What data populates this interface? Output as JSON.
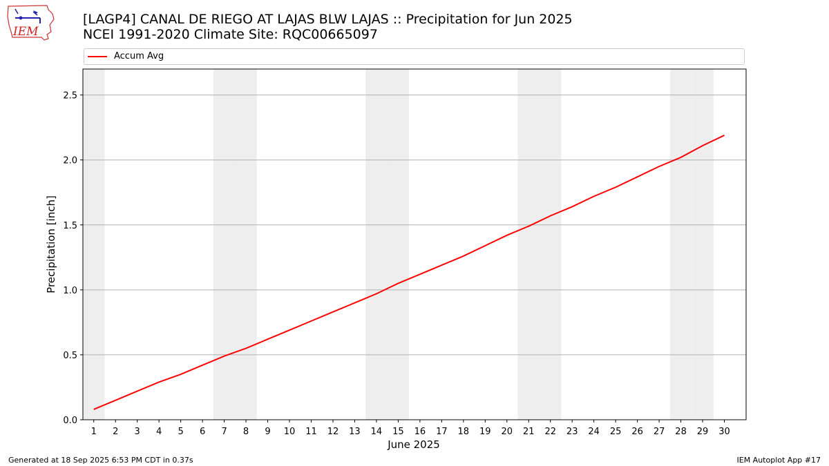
{
  "header": {
    "title_line1": "[LAGP4] CANAL DE RIEGO AT LAJAS BLW LAJAS :: Precipitation for Jun 2025",
    "title_line2": "NCEI 1991-2020 Climate Site: RQC00665097"
  },
  "logo": {
    "text": "IEM",
    "icon": "iem-iowa-logo"
  },
  "chart_data": {
    "type": "line",
    "xlabel": "June 2025",
    "ylabel": "Precipitation [inch]",
    "x": [
      1,
      2,
      3,
      4,
      5,
      6,
      7,
      8,
      9,
      10,
      11,
      12,
      13,
      14,
      15,
      16,
      17,
      18,
      19,
      20,
      21,
      22,
      23,
      24,
      25,
      26,
      27,
      28,
      29,
      30
    ],
    "series": [
      {
        "name": "Accum Avg",
        "color": "#ff0000",
        "values": [
          0.08,
          0.15,
          0.22,
          0.29,
          0.35,
          0.42,
          0.49,
          0.55,
          0.62,
          0.69,
          0.76,
          0.83,
          0.9,
          0.97,
          1.05,
          1.12,
          1.19,
          1.26,
          1.34,
          1.42,
          1.49,
          1.57,
          1.64,
          1.72,
          1.79,
          1.87,
          1.95,
          2.02,
          2.11,
          2.19
        ]
      }
    ],
    "xlim": [
      0.5,
      31
    ],
    "ylim": [
      0,
      2.7
    ],
    "yticks": [
      "0.0",
      "0.5",
      "1.0",
      "1.5",
      "2.0",
      "2.5"
    ],
    "xticks": [
      "1",
      "2",
      "3",
      "4",
      "5",
      "6",
      "7",
      "8",
      "9",
      "10",
      "11",
      "12",
      "13",
      "14",
      "15",
      "16",
      "17",
      "18",
      "19",
      "20",
      "21",
      "22",
      "23",
      "24",
      "25",
      "26",
      "27",
      "28",
      "29",
      "30"
    ],
    "weekend_days": [
      1,
      7,
      8,
      14,
      15,
      21,
      22,
      28,
      29
    ],
    "weekend_color": "#eeeeee",
    "grid": "y",
    "legend_position": "top"
  },
  "footer": {
    "generated": "Generated at 18 Sep 2025 6:53 PM CDT in 0.37s",
    "app": "IEM Autoplot App #17"
  }
}
